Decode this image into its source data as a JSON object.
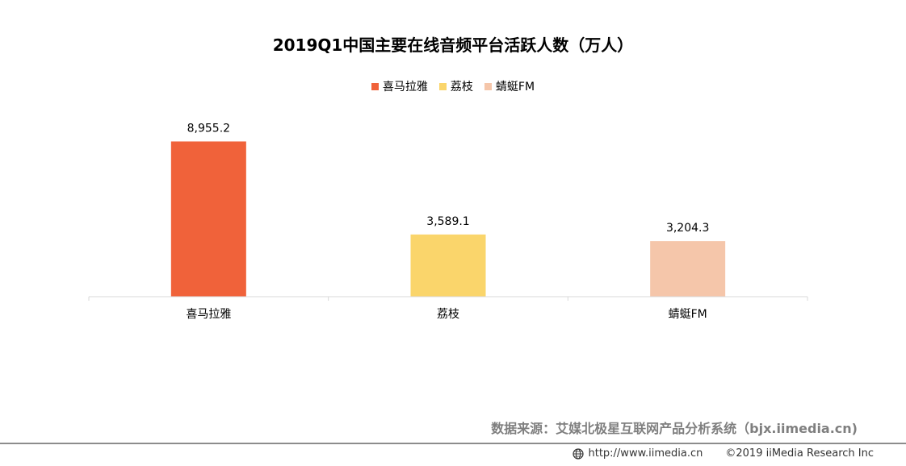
{
  "chart_data": {
    "type": "bar",
    "title": "2019Q1中国主要在线音频平台活跃人数（万人）",
    "categories": [
      "喜马拉雅",
      "荔枝",
      "蜻蜓FM"
    ],
    "series": [
      {
        "name": "喜马拉雅",
        "category": "喜马拉雅",
        "value": 8955.2,
        "label": "8,955.2",
        "color": "#f0623a"
      },
      {
        "name": "荔枝",
        "category": "荔枝",
        "value": 3589.1,
        "label": "3,589.1",
        "color": "#fad56b"
      },
      {
        "name": "蜻蜓FM",
        "category": "蜻蜓FM",
        "value": 3204.3,
        "label": "3,204.3",
        "color": "#f5c6aa"
      }
    ],
    "ylim": [
      0,
      10000
    ],
    "legend_position": "top-center",
    "grid": false,
    "xlabel": "",
    "ylabel": ""
  },
  "footer": {
    "source": "数据来源：艾媒北极星互联网产品分析系统（bjx.iimedia.cn)",
    "url": "http://www.iimedia.cn",
    "copyright": "©2019  iiMedia Research  Inc",
    "icon": "globe-icon"
  }
}
